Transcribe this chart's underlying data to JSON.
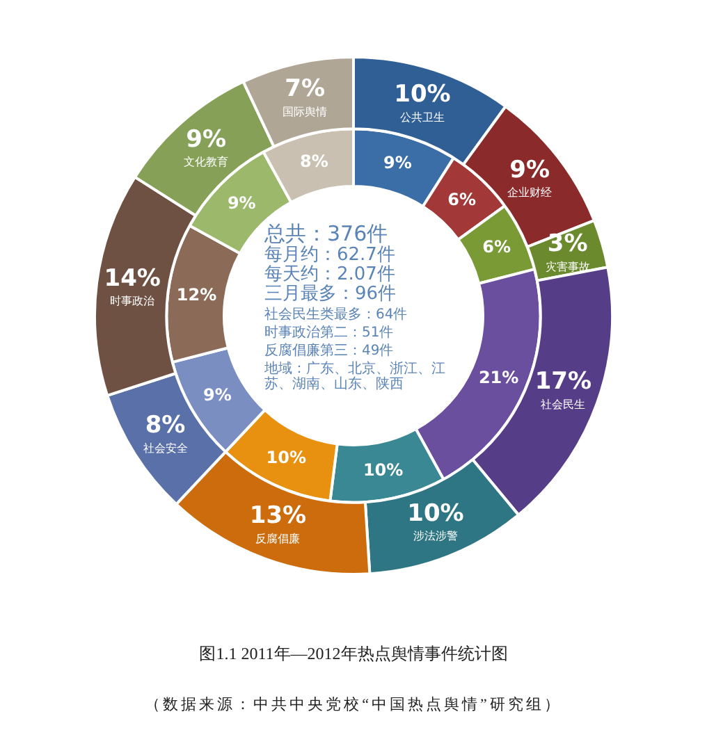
{
  "chart_data": {
    "type": "donut",
    "title": "图1.1 2011年—2012年热点舆情事件统计图",
    "subtitle": "（数据来源：中共中央党校“中国热点舆情”研究组）",
    "categories": [
      "公共卫生",
      "企业财经",
      "灾害事故",
      "社会民生",
      "涉法涉警",
      "反腐倡廉",
      "社会安全",
      "时事政治",
      "文化教育",
      "国际舆情"
    ],
    "series": [
      {
        "colors": [
          "#2f5f95",
          "#8b2a2a",
          "#6b8a2e",
          "#553d88",
          "#2e7683",
          "#cc6c0c",
          "#5a70a8",
          "#6e5142",
          "#86a058",
          "#b0a696"
        ],
        "values": [
          10,
          9,
          3,
          17,
          10,
          13,
          8,
          14,
          9,
          7
        ],
        "value_labels": [
          "10%",
          "9%",
          "3%",
          "17%",
          "10%",
          "13%",
          "8%",
          "14%",
          "9%",
          "7%"
        ]
      },
      {
        "colors": [
          "#3b6ea6",
          "#a23838",
          "#7a9a36",
          "#6a4f9e",
          "#3a8893",
          "#e8900f",
          "#7a8ec2",
          "#8b6b58",
          "#9bb86b",
          "#c9c0b1"
        ],
        "values": [
          9,
          6,
          6,
          21,
          10,
          10,
          9,
          12,
          9,
          8
        ],
        "value_labels": [
          "9%",
          "6%",
          "6%",
          "21%",
          "10%",
          "10%",
          "9%",
          "12%",
          "9%",
          "8%"
        ]
      }
    ],
    "legend": false,
    "annotations": [
      "总共：376件",
      "每月约：62.7件",
      "每天约：2.07件",
      "三月最多：96件",
      "社会民生类最多：64件",
      "时事政治第二：51件",
      "反腐倡廉第三：49件",
      "地域：广东、北京、浙江、江苏、湖南、山东、陕西"
    ]
  }
}
